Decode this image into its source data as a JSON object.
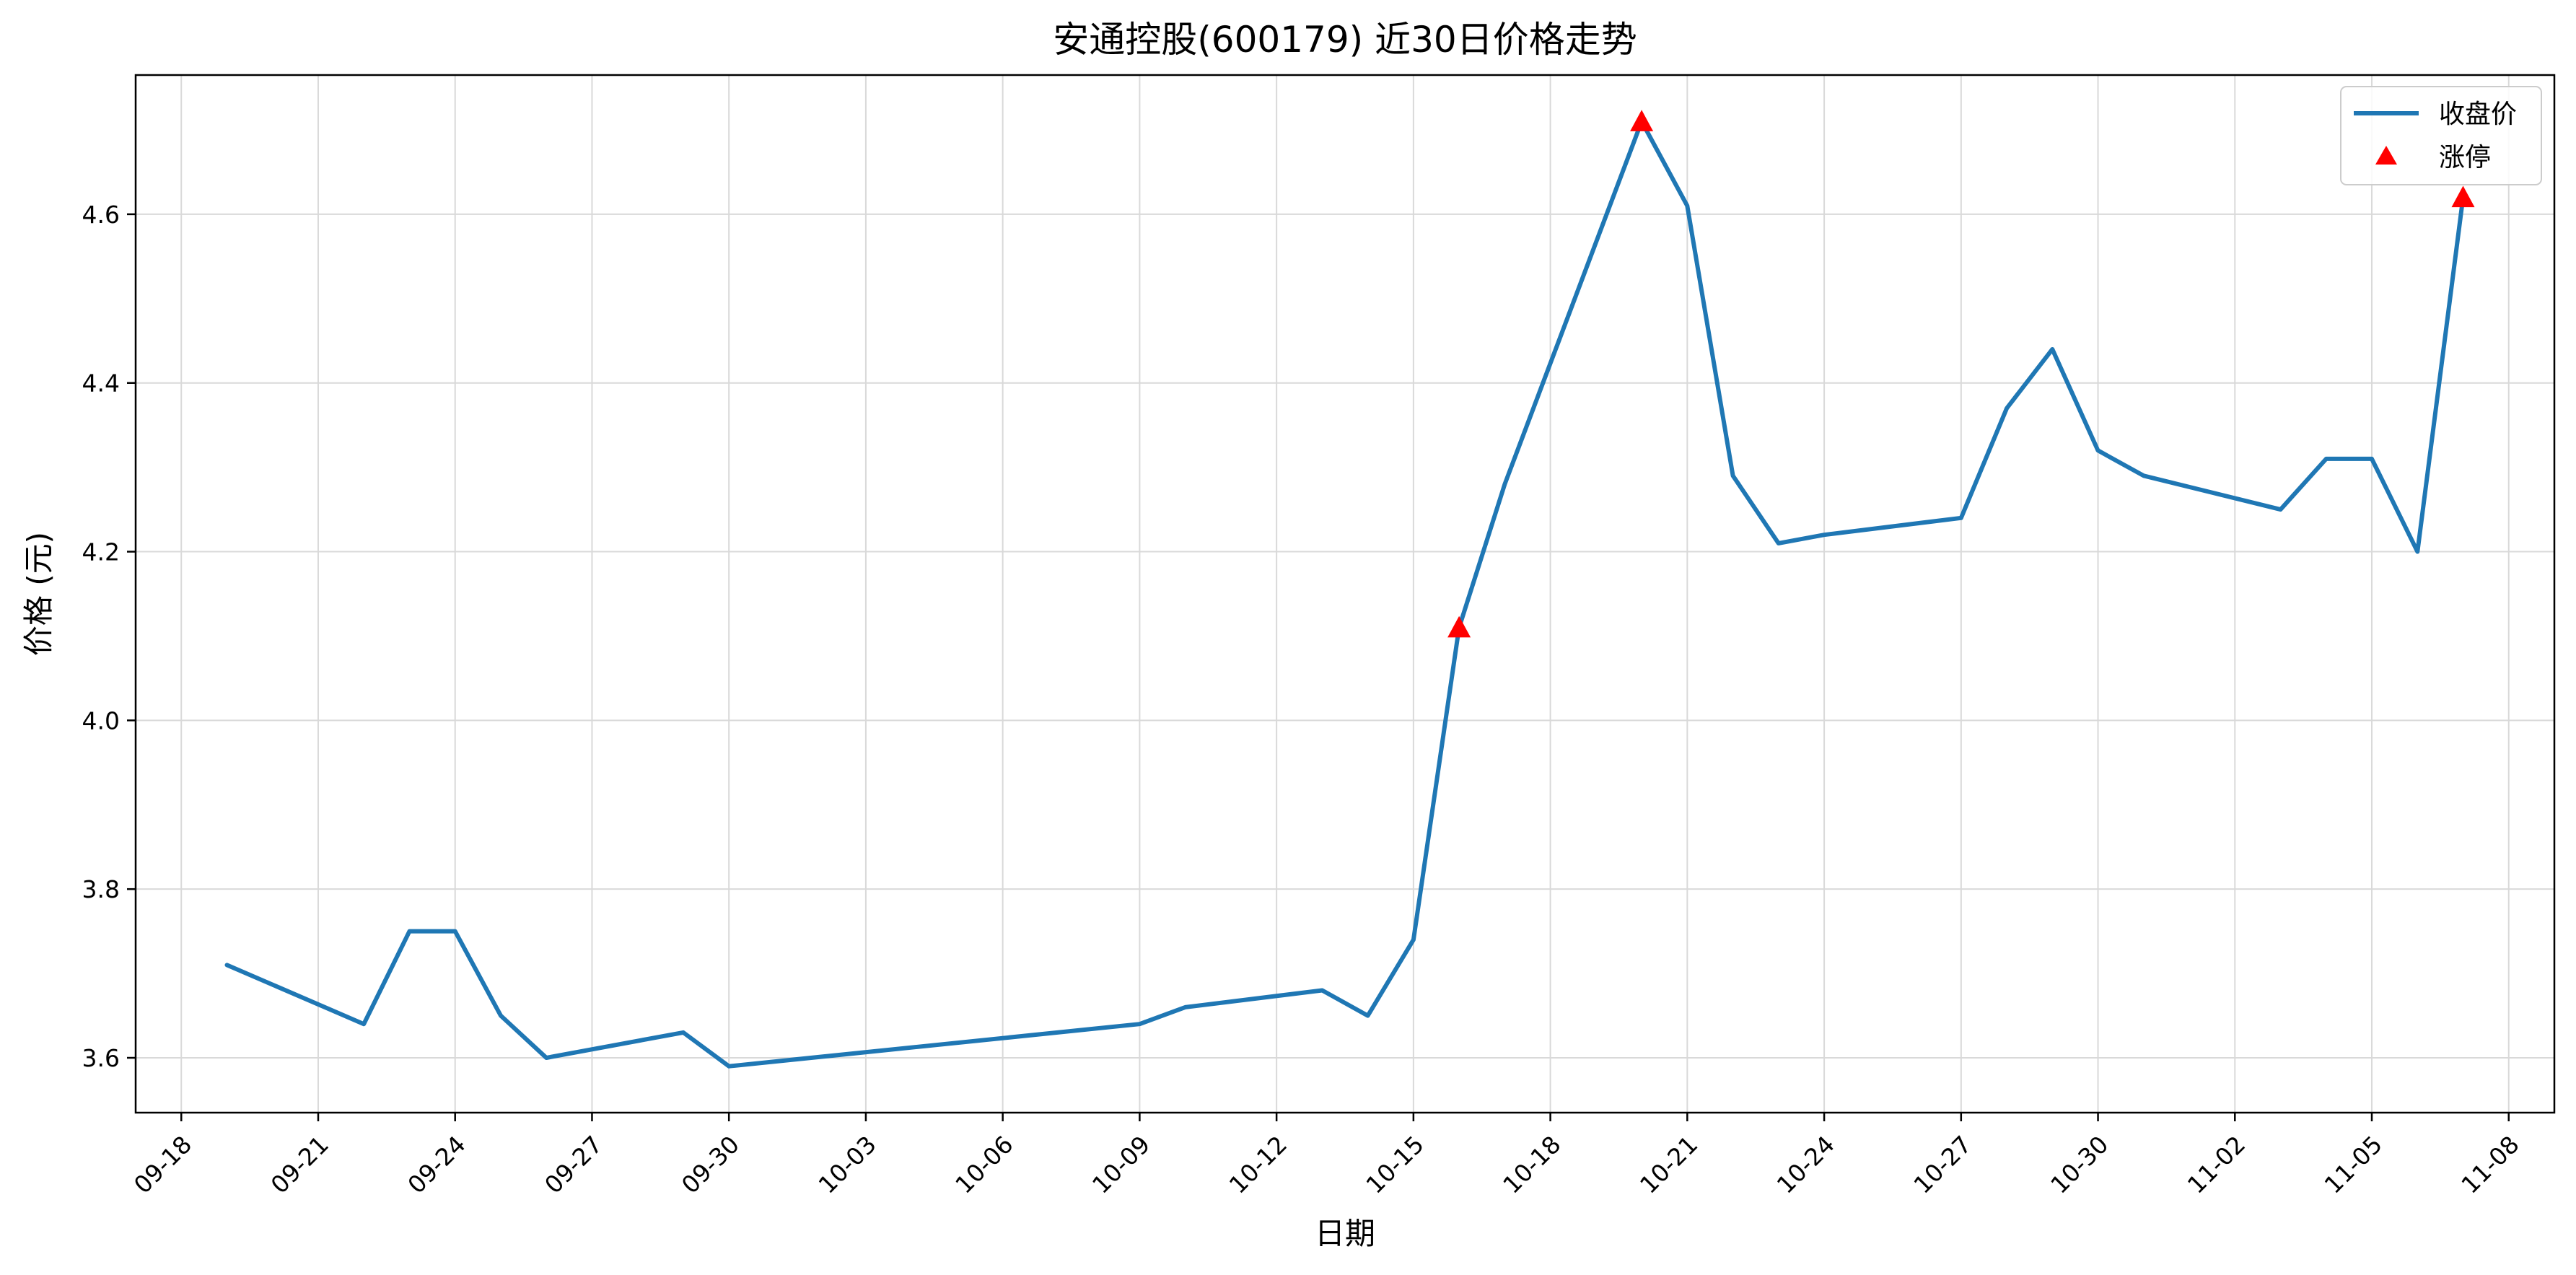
{
  "chart_data": {
    "type": "line",
    "title": "安通控股(600179) 近30日价格走势",
    "xlabel": "日期",
    "ylabel": "价格 (元)",
    "x_axis": "date",
    "year": 2024,
    "xlim": [
      "2024-09-17",
      "2024-11-09"
    ],
    "ylim": [
      3.535,
      4.765
    ],
    "x_ticks": [
      "2024-09-18",
      "2024-09-21",
      "2024-09-24",
      "2024-09-27",
      "2024-09-30",
      "2024-10-03",
      "2024-10-06",
      "2024-10-09",
      "2024-10-12",
      "2024-10-15",
      "2024-10-18",
      "2024-10-21",
      "2024-10-24",
      "2024-10-27",
      "2024-10-30",
      "2024-11-02",
      "2024-11-05",
      "2024-11-08"
    ],
    "x_tick_labels": [
      "09-18",
      "09-21",
      "09-24",
      "09-27",
      "09-30",
      "10-03",
      "10-06",
      "10-09",
      "10-12",
      "10-15",
      "10-18",
      "10-21",
      "10-24",
      "10-27",
      "10-30",
      "11-02",
      "11-05",
      "11-08"
    ],
    "y_ticks": [
      3.6,
      3.8,
      4.0,
      4.2,
      4.4,
      4.6
    ],
    "y_tick_labels": [
      "3.6",
      "3.8",
      "4.0",
      "4.2",
      "4.4",
      "4.6"
    ],
    "grid": true,
    "legend_position": "top-right",
    "series": [
      {
        "name": "收盘价",
        "type": "line",
        "color": "#1f77b4",
        "x": [
          "2024-09-19",
          "2024-09-22",
          "2024-09-23",
          "2024-09-24",
          "2024-09-25",
          "2024-09-26",
          "2024-09-29",
          "2024-09-30",
          "2024-10-09",
          "2024-10-10",
          "2024-10-13",
          "2024-10-14",
          "2024-10-15",
          "2024-10-16",
          "2024-10-17",
          "2024-10-20",
          "2024-10-21",
          "2024-10-22",
          "2024-10-23",
          "2024-10-24",
          "2024-10-27",
          "2024-10-28",
          "2024-10-29",
          "2024-10-30",
          "2024-10-31",
          "2024-11-03",
          "2024-11-04",
          "2024-11-05",
          "2024-11-06",
          "2024-11-07"
        ],
        "values": [
          3.71,
          3.64,
          3.75,
          3.75,
          3.65,
          3.6,
          3.63,
          3.59,
          3.64,
          3.66,
          3.68,
          3.65,
          3.74,
          4.11,
          4.28,
          4.71,
          4.61,
          4.29,
          4.21,
          4.22,
          4.24,
          4.37,
          4.44,
          4.32,
          4.29,
          4.25,
          4.31,
          4.31,
          4.2,
          4.62
        ]
      },
      {
        "name": "涨停",
        "type": "scatter",
        "marker": "triangle",
        "color": "#ff0000",
        "x": [
          "2024-10-16",
          "2024-10-20",
          "2024-11-07"
        ],
        "values": [
          4.11,
          4.71,
          4.62
        ]
      }
    ]
  }
}
